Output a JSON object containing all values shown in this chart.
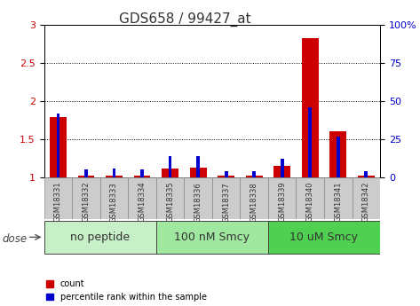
{
  "title": "GDS658 / 99427_at",
  "samples": [
    "GSM18331",
    "GSM18332",
    "GSM18333",
    "GSM18334",
    "GSM18335",
    "GSM18336",
    "GSM18337",
    "GSM18338",
    "GSM18339",
    "GSM18340",
    "GSM18341",
    "GSM18342"
  ],
  "count_values": [
    1.79,
    1.02,
    1.02,
    1.02,
    1.12,
    1.13,
    1.02,
    1.02,
    1.15,
    2.82,
    1.6,
    1.02
  ],
  "percentile_values": [
    42,
    5,
    6,
    5,
    14,
    14,
    4,
    4,
    12,
    46,
    27,
    4
  ],
  "groups": [
    {
      "label": "no peptide",
      "start": 0,
      "end": 4,
      "color": "#c8f0c8"
    },
    {
      "label": "100 nM Smcy",
      "start": 4,
      "end": 8,
      "color": "#a0e8a0"
    },
    {
      "label": "10 uM Smcy",
      "start": 8,
      "end": 12,
      "color": "#50d050"
    }
  ],
  "ylim_left": [
    1.0,
    3.0
  ],
  "ylim_right": [
    0,
    100
  ],
  "yticks_left": [
    1.0,
    1.5,
    2.0,
    2.5,
    3.0
  ],
  "ytick_labels_left": [
    "1",
    "1.5",
    "2",
    "2.5",
    "3"
  ],
  "yticks_right": [
    0,
    25,
    50,
    75,
    100
  ],
  "ytick_labels_right": [
    "0",
    "25",
    "50",
    "75",
    "100%"
  ],
  "red_bar_width": 0.6,
  "blue_bar_width": 0.12,
  "count_color": "#cc0000",
  "percentile_color": "#0000cc",
  "grid_color": "black",
  "sample_box_color": "#cccccc",
  "dose_label": "dose",
  "legend_count": "count",
  "legend_percentile": "percentile rank within the sample",
  "title_fontsize": 11,
  "tick_fontsize": 8,
  "group_label_fontsize": 9,
  "sample_fontsize": 6
}
